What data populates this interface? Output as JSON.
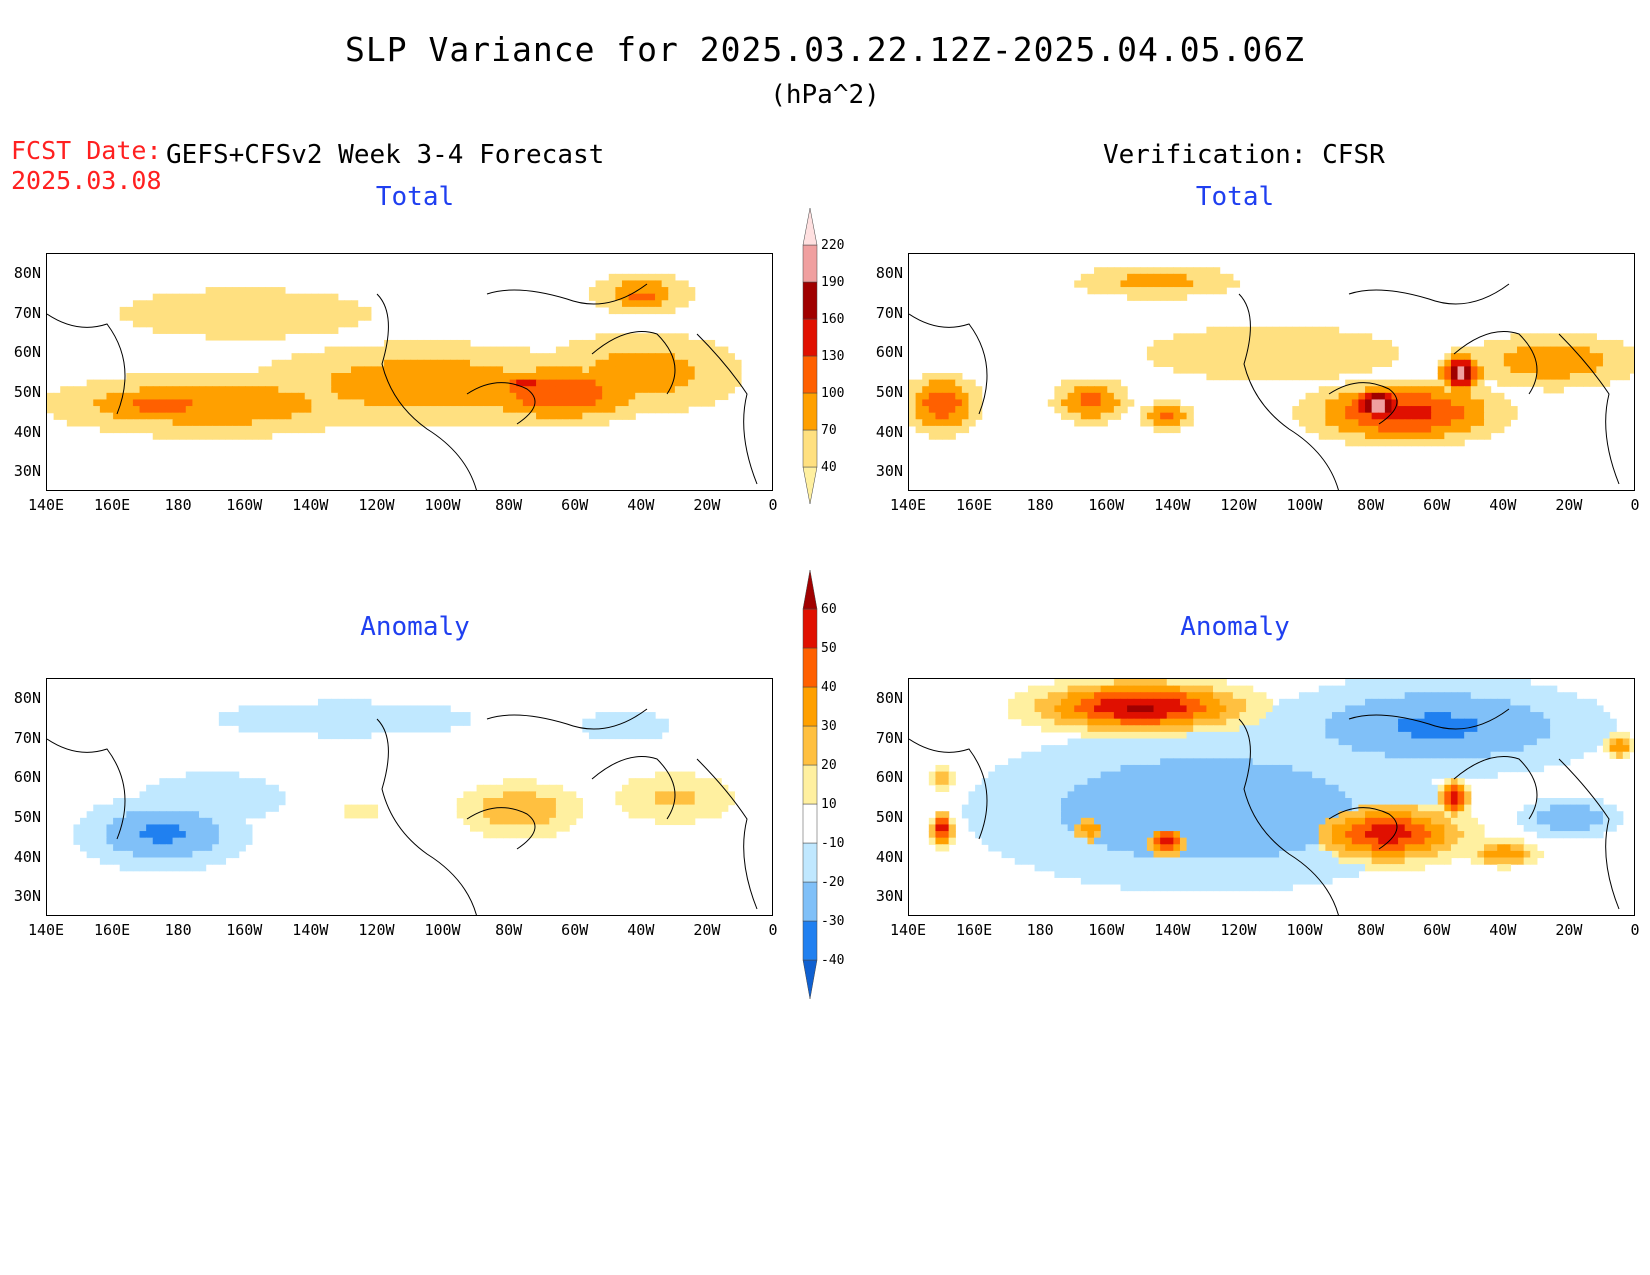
{
  "title": "SLP Variance for 2025.03.22.12Z-2025.04.05.06Z",
  "units": "(hPa^2)",
  "fcst_label": "FCST Date:",
  "fcst_date": "2025.03.08",
  "left_subtitle": "GEFS+CFSv2 Week 3-4 Forecast",
  "right_subtitle": "Verification: CFSR",
  "panel_titles": {
    "total": "Total",
    "anomaly": "Anomaly"
  },
  "lat_labels": [
    "80N",
    "70N",
    "60N",
    "50N",
    "40N",
    "30N"
  ],
  "lon_labels": [
    "140E",
    "160E",
    "180",
    "160W",
    "140W",
    "120W",
    "100W",
    "80W",
    "60W",
    "40W",
    "20W",
    "0"
  ],
  "map_extent": {
    "lon_min": 140,
    "lon_max": 360,
    "lat_min": 25,
    "lat_max": 85
  },
  "colorbars": {
    "total": {
      "levels": [
        "40",
        "70",
        "100",
        "130",
        "160",
        "190",
        "220"
      ],
      "colors": [
        "#fff0a0",
        "#ffe080",
        "#ffa000",
        "#ff6000",
        "#e01000",
        "#a00000",
        "#f0a0a0",
        "#ffe0e0"
      ]
    },
    "anomaly": {
      "levels": [
        "-40",
        "-30",
        "-20",
        "-10",
        "10",
        "20",
        "30",
        "40",
        "50",
        "60"
      ],
      "colors": [
        "#1060d0",
        "#2080f0",
        "#80c0f8",
        "#c0e8ff",
        "#ffffff",
        "#fff0a0",
        "#ffc040",
        "#ffa000",
        "#ff6000",
        "#e01000",
        "#a00000"
      ]
    }
  },
  "fields": {
    "forecast_total": [
      {
        "lon": 190,
        "lat": 47,
        "rx": 55,
        "ry": 9,
        "v": 95
      },
      {
        "lon": 175,
        "lat": 47,
        "rx": 30,
        "ry": 6,
        "v": 110
      },
      {
        "lon": 255,
        "lat": 52,
        "rx": 60,
        "ry": 12,
        "v": 90
      },
      {
        "lon": 295,
        "lat": 50,
        "rx": 30,
        "ry": 8,
        "v": 125
      },
      {
        "lon": 285,
        "lat": 52,
        "rx": 8,
        "ry": 3,
        "v": 150
      },
      {
        "lon": 320,
        "lat": 55,
        "rx": 35,
        "ry": 12,
        "v": 85
      },
      {
        "lon": 320,
        "lat": 75,
        "rx": 18,
        "ry": 6,
        "v": 90
      },
      {
        "lon": 320,
        "lat": 74,
        "rx": 6,
        "ry": 2,
        "v": 130
      },
      {
        "lon": 200,
        "lat": 70,
        "rx": 110,
        "ry": 18,
        "v": 45
      }
    ],
    "verification_total": [
      {
        "lon": 150,
        "lat": 47,
        "rx": 12,
        "ry": 8,
        "v": 120
      },
      {
        "lon": 195,
        "lat": 48,
        "rx": 12,
        "ry": 6,
        "v": 110
      },
      {
        "lon": 218,
        "lat": 44,
        "rx": 8,
        "ry": 4,
        "v": 110
      },
      {
        "lon": 215,
        "lat": 78,
        "rx": 30,
        "ry": 5,
        "v": 80
      },
      {
        "lon": 290,
        "lat": 45,
        "rx": 30,
        "ry": 8,
        "v": 140
      },
      {
        "lon": 282,
        "lat": 47,
        "rx": 8,
        "ry": 4,
        "v": 220
      },
      {
        "lon": 307,
        "lat": 55,
        "rx": 6,
        "ry": 5,
        "v": 200
      },
      {
        "lon": 335,
        "lat": 58,
        "rx": 30,
        "ry": 8,
        "v": 90
      },
      {
        "lon": 250,
        "lat": 60,
        "rx": 110,
        "ry": 20,
        "v": 45
      }
    ],
    "forecast_anomaly": [
      {
        "lon": 175,
        "lat": 46,
        "rx": 25,
        "ry": 9,
        "v": -32
      },
      {
        "lon": 190,
        "lat": 55,
        "rx": 50,
        "ry": 15,
        "v": -12
      },
      {
        "lon": 315,
        "lat": 73,
        "rx": 20,
        "ry": 6,
        "v": -15
      },
      {
        "lon": 283,
        "lat": 52,
        "rx": 18,
        "ry": 7,
        "v": 30
      },
      {
        "lon": 330,
        "lat": 55,
        "rx": 20,
        "ry": 7,
        "v": 22
      },
      {
        "lon": 235,
        "lat": 52,
        "rx": 8,
        "ry": 3,
        "v": 15
      },
      {
        "lon": 230,
        "lat": 75,
        "rx": 90,
        "ry": 10,
        "v": -12
      }
    ],
    "verification_anomaly": [
      {
        "lon": 210,
        "lat": 78,
        "rx": 30,
        "ry": 6,
        "v": 62
      },
      {
        "lon": 230,
        "lat": 52,
        "rx": 70,
        "ry": 20,
        "v": -30
      },
      {
        "lon": 300,
        "lat": 73,
        "rx": 50,
        "ry": 12,
        "v": -32
      },
      {
        "lon": 285,
        "lat": 46,
        "rx": 22,
        "ry": 7,
        "v": 55
      },
      {
        "lon": 305,
        "lat": 55,
        "rx": 4,
        "ry": 4,
        "v": 60
      },
      {
        "lon": 218,
        "lat": 44,
        "rx": 6,
        "ry": 4,
        "v": 55
      },
      {
        "lon": 195,
        "lat": 47,
        "rx": 6,
        "ry": 4,
        "v": 35
      },
      {
        "lon": 150,
        "lat": 47,
        "rx": 3,
        "ry": 4,
        "v": 60
      },
      {
        "lon": 150,
        "lat": 60,
        "rx": 3,
        "ry": 3,
        "v": 30
      },
      {
        "lon": 340,
        "lat": 50,
        "rx": 15,
        "ry": 5,
        "v": -30
      },
      {
        "lon": 320,
        "lat": 41,
        "rx": 10,
        "ry": 3,
        "v": 40
      },
      {
        "lon": 355,
        "lat": 68,
        "rx": 4,
        "ry": 3,
        "v": 40
      }
    ]
  }
}
